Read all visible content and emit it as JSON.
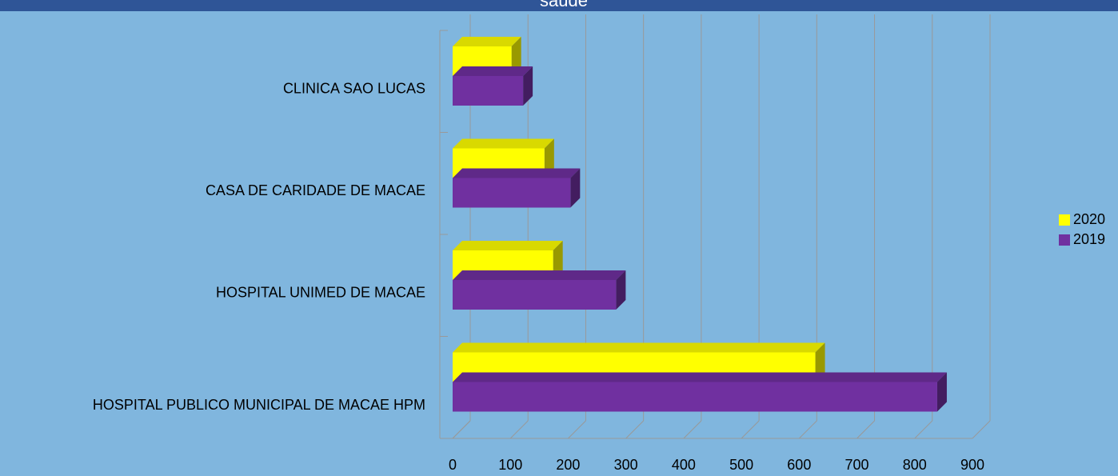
{
  "chart_data": {
    "type": "bar3d_horizontal",
    "title": "saude",
    "categories": [
      "HOSPITAL PUBLICO MUNICIPAL DE MACAE HPM",
      "HOSPITAL UNIMED DE MACAE",
      "CASA DE CARIDADE DE MACAE",
      "CLINICA SAO LUCAS"
    ],
    "series": [
      {
        "name": "2020",
        "color": "#ffff00",
        "values": [
          628,
          174,
          159,
          102
        ]
      },
      {
        "name": "2019",
        "color": "#7030a0",
        "values": [
          839,
          283,
          204,
          122
        ]
      }
    ],
    "xlim": [
      0,
      900
    ],
    "xticks": [
      0,
      100,
      200,
      300,
      400,
      500,
      600,
      700,
      800,
      900
    ],
    "grid": true,
    "legend": "right"
  }
}
